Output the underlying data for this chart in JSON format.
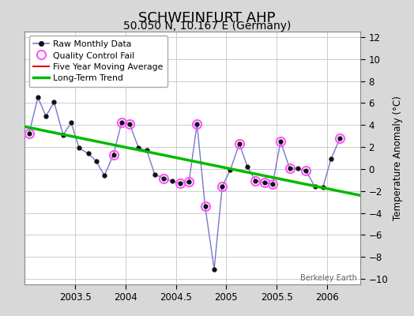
{
  "title": "SCHWEINFURT AHP",
  "subtitle": "50.050 N, 10.167 E (Germany)",
  "ylabel": "Temperature Anomaly (°C)",
  "watermark": "Berkeley Earth",
  "ylim": [
    -10.5,
    12.5
  ],
  "yticks": [
    -10,
    -8,
    -6,
    -4,
    -2,
    0,
    2,
    4,
    6,
    8,
    10,
    12
  ],
  "xlim": [
    2003.0,
    2006.33
  ],
  "xticks": [
    2003.5,
    2004.0,
    2004.5,
    2005.0,
    2005.5,
    2006.0
  ],
  "xticklabels": [
    "2003.5",
    "2004",
    "2004.5",
    "2005",
    "2005.5",
    "2006"
  ],
  "background_color": "#d8d8d8",
  "plot_bg_color": "#ffffff",
  "raw_x": [
    2003.04,
    2003.13,
    2003.21,
    2003.29,
    2003.38,
    2003.46,
    2003.54,
    2003.63,
    2003.71,
    2003.79,
    2003.88,
    2003.96,
    2004.04,
    2004.13,
    2004.21,
    2004.29,
    2004.38,
    2004.46,
    2004.54,
    2004.63,
    2004.71,
    2004.79,
    2004.88,
    2004.96,
    2005.04,
    2005.13,
    2005.21,
    2005.29,
    2005.38,
    2005.46,
    2005.54,
    2005.63,
    2005.71,
    2005.79,
    2005.88,
    2005.96,
    2006.04,
    2006.13
  ],
  "raw_y": [
    3.2,
    6.5,
    4.8,
    6.1,
    3.1,
    4.2,
    1.9,
    1.4,
    0.7,
    -0.6,
    1.3,
    4.2,
    4.1,
    1.9,
    1.7,
    -0.5,
    -0.85,
    -1.1,
    -1.3,
    -1.15,
    4.1,
    -3.4,
    -9.1,
    -1.6,
    -0.1,
    2.3,
    0.2,
    -1.05,
    -1.25,
    -1.35,
    2.5,
    0.05,
    0.05,
    -0.15,
    -1.6,
    -1.65,
    0.9,
    2.8
  ],
  "qc_fail_x": [
    2003.04,
    2003.88,
    2003.96,
    2004.04,
    2004.38,
    2004.54,
    2004.63,
    2004.71,
    2004.79,
    2004.96,
    2005.13,
    2005.29,
    2005.38,
    2005.46,
    2005.54,
    2005.63,
    2005.79,
    2006.13
  ],
  "qc_fail_y": [
    3.2,
    1.3,
    4.2,
    4.1,
    -0.85,
    -1.3,
    -1.15,
    4.1,
    -3.4,
    -1.6,
    2.3,
    -1.05,
    -1.25,
    -1.35,
    2.5,
    0.05,
    -0.15,
    2.8
  ],
  "trend_x": [
    2003.0,
    2006.33
  ],
  "trend_y": [
    3.85,
    -2.4
  ],
  "raw_line_color": "#7777cc",
  "raw_dot_color": "#111111",
  "qc_color": "#ff55ff",
  "trend_color": "#00bb00",
  "mavg_color": "#dd0000",
  "grid_color": "#cccccc",
  "title_fontsize": 13,
  "subtitle_fontsize": 10,
  "tick_fontsize": 8.5,
  "ylabel_fontsize": 8.5
}
